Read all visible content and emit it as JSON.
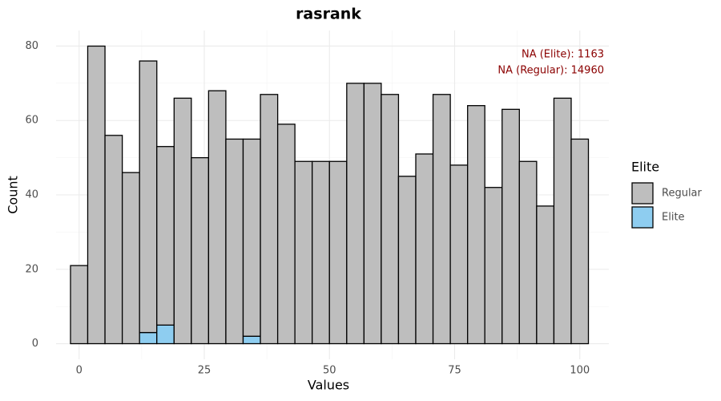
{
  "chart_data": {
    "type": "histogram",
    "title": "rasrank",
    "x_label": "Values",
    "y_label": "Count",
    "bins": [
      -1.72,
      1.72,
      5.17,
      8.62,
      12.07,
      15.52,
      18.97,
      22.41,
      25.86,
      29.31,
      32.76,
      36.21,
      39.66,
      43.1,
      46.55,
      50,
      53.45,
      56.9,
      60.34,
      63.79,
      67.24,
      70.69,
      74.14,
      77.59,
      81.03,
      84.48,
      87.93,
      91.38,
      94.83,
      98.28,
      101.72
    ],
    "series": [
      {
        "name": "Regular",
        "color": "#bebebe",
        "values": [
          21,
          80,
          56,
          46,
          73,
          48,
          66,
          50,
          68,
          55,
          53,
          67,
          59,
          49,
          49,
          49,
          70,
          70,
          67,
          45,
          51,
          67,
          48,
          64,
          42,
          63,
          49,
          37,
          66,
          55
        ]
      },
      {
        "name": "Elite",
        "color": "#8ecdf0",
        "values": [
          0,
          0,
          0,
          0,
          3,
          5,
          0,
          0,
          0,
          0,
          2,
          0,
          0,
          0,
          0,
          0,
          0,
          0,
          0,
          0,
          0,
          0,
          0,
          0,
          0,
          0,
          0,
          0,
          0,
          0
        ]
      }
    ],
    "stacked": true,
    "legend_title": "Elite",
    "legend": "right",
    "annotations": [
      "NA (Elite): 1163",
      "NA (Regular): 14960"
    ],
    "annotation_color": "#8b0000",
    "xlim": [
      -4.6,
      105.8
    ],
    "xticks": [
      0,
      25,
      50,
      75,
      100
    ],
    "ylim": [
      -4.2,
      84.2
    ],
    "yticks": [
      0,
      20,
      40,
      60,
      80
    ],
    "grid": true
  }
}
